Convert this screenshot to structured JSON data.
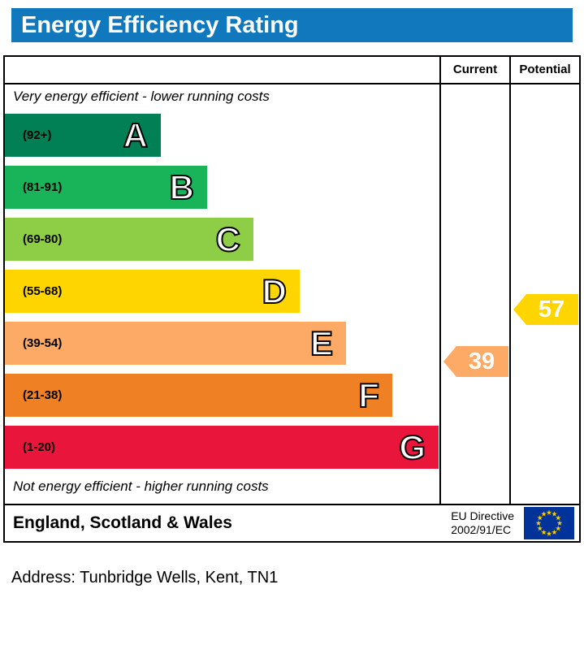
{
  "title": "Energy Efficiency Rating",
  "colors": {
    "title_bar": "#1278be",
    "border": "#000000",
    "eu_flag_blue": "#003399",
    "eu_flag_star": "#FFCC00"
  },
  "header": {
    "current": "Current",
    "potential": "Potential"
  },
  "notes": {
    "top": "Very energy efficient - lower running costs",
    "bottom": "Not energy efficient - higher running costs"
  },
  "bands": [
    {
      "letter": "A",
      "range": "(92+)",
      "color": "#008054"
    },
    {
      "letter": "B",
      "range": "(81-91)",
      "color": "#19b459"
    },
    {
      "letter": "C",
      "range": "(69-80)",
      "color": "#8dce46"
    },
    {
      "letter": "D",
      "range": "(55-68)",
      "color": "#ffd500"
    },
    {
      "letter": "E",
      "range": "(39-54)",
      "color": "#fcaa65"
    },
    {
      "letter": "F",
      "range": "(21-38)",
      "color": "#ef8023"
    },
    {
      "letter": "G",
      "range": "(1-20)",
      "color": "#e9153b"
    }
  ],
  "ratings": {
    "current": {
      "value": "39",
      "color": "#fcaa65",
      "band_index": 4
    },
    "potential": {
      "value": "57",
      "color": "#ffd500",
      "band_index": 3
    }
  },
  "footer": {
    "region": "England, Scotland & Wales",
    "directive_line1": "EU Directive",
    "directive_line2": "2002/91/EC"
  },
  "address": "Address: Tunbridge Wells, Kent, TN1",
  "chart_data": {
    "type": "bar",
    "title": "Energy Efficiency Rating",
    "categories": [
      "A (92+)",
      "B (81-91)",
      "C (69-80)",
      "D (55-68)",
      "E (39-54)",
      "F (21-38)",
      "G (1-20)"
    ],
    "band_colors": [
      "#008054",
      "#19b459",
      "#8dce46",
      "#ffd500",
      "#fcaa65",
      "#ef8023",
      "#e9153b"
    ],
    "series": [
      {
        "name": "Current",
        "value": 39,
        "band": "E",
        "color": "#fcaa65"
      },
      {
        "name": "Potential",
        "value": 57,
        "band": "D",
        "color": "#ffd500"
      }
    ],
    "scale": [
      1,
      100
    ],
    "annotations": [
      "Very energy efficient - lower running costs",
      "Not energy efficient - higher running costs"
    ],
    "footer_region": "England, Scotland & Wales",
    "footer_directive": "EU Directive 2002/91/EC"
  }
}
